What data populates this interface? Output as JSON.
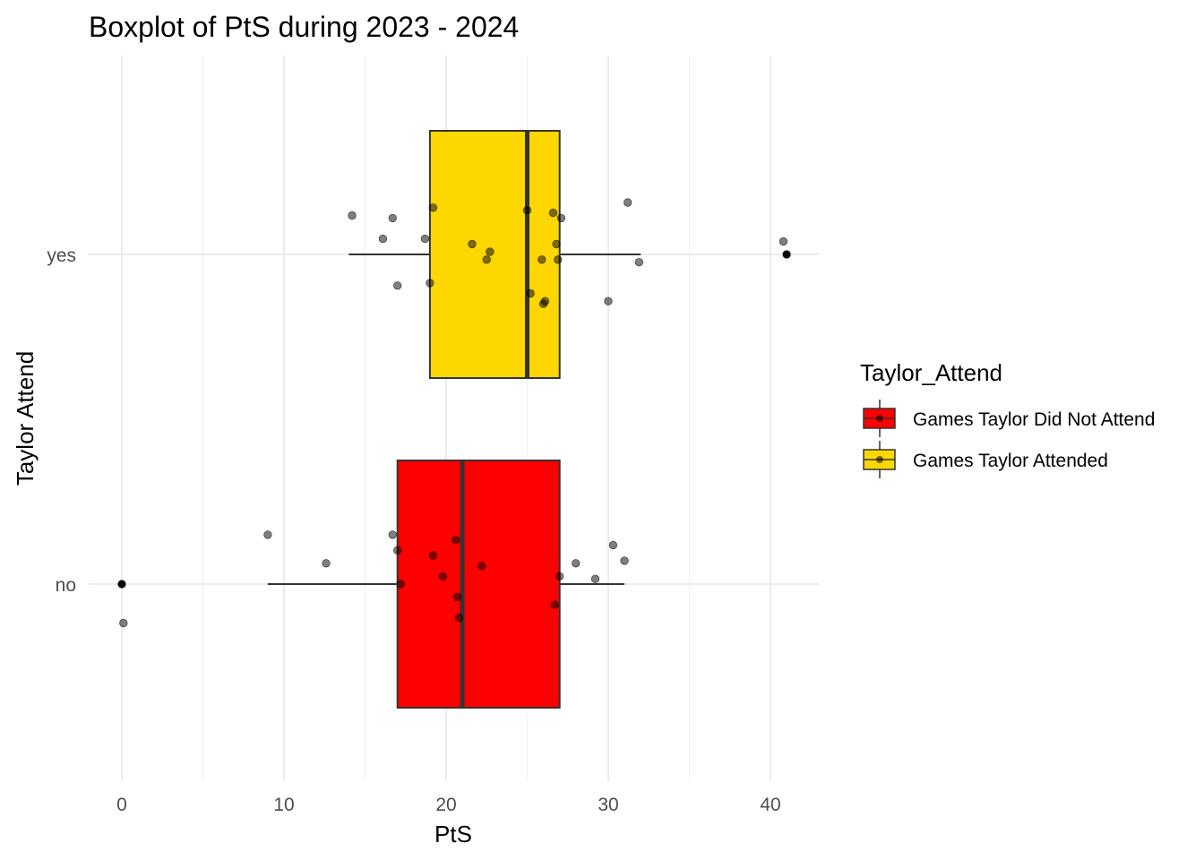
{
  "chart_data": {
    "type": "boxplot",
    "title": "Boxplot of PtS during 2023 - 2024",
    "xlabel": "PtS",
    "ylabel": "Taylor Attend",
    "xlim": [
      -2,
      43
    ],
    "x_ticks": [
      0,
      10,
      20,
      30,
      40
    ],
    "categories": [
      "no",
      "yes"
    ],
    "legend": {
      "title": "Taylor_Attend",
      "position": "right",
      "entries": [
        {
          "label": "Games Taylor Did Not Attend",
          "color": "#FF0000"
        },
        {
          "label": "Games Taylor Attended",
          "color": "#FFD700"
        }
      ]
    },
    "series": [
      {
        "category": "no",
        "color": "#FF0000",
        "box": {
          "whisker_low": 9,
          "q1": 17,
          "median": 21,
          "q3": 27,
          "whisker_high": 31
        },
        "outliers": [
          0,
          0
        ],
        "points": [
          {
            "x": 0,
            "jitter": 0
          },
          {
            "x": 0.1,
            "jitter": -0.15
          },
          {
            "x": 9,
            "jitter": 0.19
          },
          {
            "x": 12.6,
            "jitter": 0.08
          },
          {
            "x": 16.7,
            "jitter": 0.19
          },
          {
            "x": 17,
            "jitter": 0.13
          },
          {
            "x": 17.2,
            "jitter": 0.0
          },
          {
            "x": 19.2,
            "jitter": 0.11
          },
          {
            "x": 19.8,
            "jitter": 0.03
          },
          {
            "x": 20.6,
            "jitter": 0.17
          },
          {
            "x": 20.7,
            "jitter": -0.05
          },
          {
            "x": 20.8,
            "jitter": -0.13
          },
          {
            "x": 22.2,
            "jitter": 0.07
          },
          {
            "x": 26.7,
            "jitter": -0.08
          },
          {
            "x": 27,
            "jitter": 0.03
          },
          {
            "x": 28,
            "jitter": 0.08
          },
          {
            "x": 29.2,
            "jitter": 0.02
          },
          {
            "x": 30.3,
            "jitter": 0.15
          },
          {
            "x": 31,
            "jitter": 0.09
          }
        ]
      },
      {
        "category": "yes",
        "color": "#FFD700",
        "box": {
          "whisker_low": 14,
          "q1": 19,
          "median": 25,
          "q3": 27,
          "whisker_high": 32
        },
        "outliers": [
          41,
          41
        ],
        "points": [
          {
            "x": 14.2,
            "jitter": 0.15
          },
          {
            "x": 16.1,
            "jitter": 0.06
          },
          {
            "x": 16.7,
            "jitter": 0.14
          },
          {
            "x": 17,
            "jitter": -0.12
          },
          {
            "x": 18.7,
            "jitter": 0.06
          },
          {
            "x": 19,
            "jitter": -0.11
          },
          {
            "x": 19.2,
            "jitter": 0.18
          },
          {
            "x": 21.6,
            "jitter": 0.04
          },
          {
            "x": 22.5,
            "jitter": -0.02
          },
          {
            "x": 22.7,
            "jitter": 0.01
          },
          {
            "x": 25,
            "jitter": 0.17
          },
          {
            "x": 25.2,
            "jitter": -0.15
          },
          {
            "x": 25.9,
            "jitter": -0.02
          },
          {
            "x": 26,
            "jitter": -0.19
          },
          {
            "x": 26.1,
            "jitter": -0.18
          },
          {
            "x": 26.6,
            "jitter": 0.16
          },
          {
            "x": 26.8,
            "jitter": 0.04
          },
          {
            "x": 26.9,
            "jitter": -0.02
          },
          {
            "x": 27.1,
            "jitter": 0.14
          },
          {
            "x": 30,
            "jitter": -0.18
          },
          {
            "x": 31.2,
            "jitter": 0.2
          },
          {
            "x": 31.9,
            "jitter": -0.03
          },
          {
            "x": 40.8,
            "jitter": 0.05
          },
          {
            "x": 41,
            "jitter": 0.0
          }
        ]
      }
    ]
  }
}
